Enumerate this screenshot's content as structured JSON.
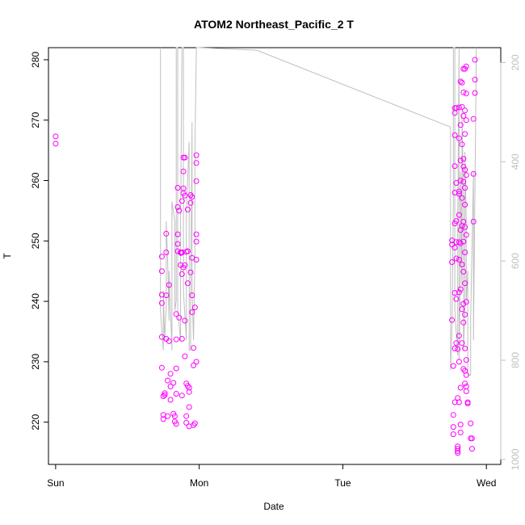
{
  "chart_data": {
    "type": "scatter",
    "title": "ATOM2 Northeast_Pacific_2 T",
    "xlabel": "Date",
    "ylabel": "T",
    "x_ticks": [
      {
        "label": "Sun",
        "value": 0
      },
      {
        "label": "Mon",
        "value": 1
      },
      {
        "label": "Tue",
        "value": 2
      },
      {
        "label": "Wed",
        "value": 3
      }
    ],
    "xlim": [
      -0.05,
      3.1
    ],
    "y_ticks": [
      220,
      230,
      240,
      250,
      260,
      270,
      280
    ],
    "ylim": [
      213,
      282
    ],
    "y2_ticks": [
      200,
      400,
      600,
      800,
      1000
    ],
    "y2lim": [
      1010,
      170
    ],
    "grid": false,
    "point_color": "#ff00ff",
    "line_color": "#bfbfbf",
    "series": [
      {
        "type": "scatter",
        "points": [
          [
            0.0,
            267.3
          ],
          [
            0.0,
            266.1
          ],
          [
            0.74,
            247.4
          ],
          [
            0.74,
            245.0
          ],
          [
            0.74,
            241.1
          ],
          [
            0.74,
            239.7
          ],
          [
            0.74,
            234.1
          ],
          [
            0.74,
            229.0
          ],
          [
            0.75,
            224.3
          ],
          [
            0.75,
            221.2
          ],
          [
            0.75,
            220.5
          ],
          [
            0.76,
            224.8
          ],
          [
            0.76,
            224.5
          ],
          [
            0.77,
            251.2
          ],
          [
            0.77,
            248.1
          ],
          [
            0.77,
            241.0
          ],
          [
            0.77,
            233.8
          ],
          [
            0.78,
            226.9
          ],
          [
            0.78,
            221.0
          ],
          [
            0.79,
            242.7
          ],
          [
            0.79,
            233.4
          ],
          [
            0.8,
            228.0
          ],
          [
            0.8,
            225.9
          ],
          [
            0.8,
            223.7
          ],
          [
            0.82,
            226.5
          ],
          [
            0.82,
            221.4
          ],
          [
            0.83,
            221.0
          ],
          [
            0.83,
            220.1
          ],
          [
            0.84,
            237.9
          ],
          [
            0.84,
            233.7
          ],
          [
            0.84,
            228.9
          ],
          [
            0.84,
            224.7
          ],
          [
            0.84,
            219.7
          ],
          [
            0.85,
            258.8
          ],
          [
            0.85,
            255.6
          ],
          [
            0.85,
            251.1
          ],
          [
            0.85,
            249.5
          ],
          [
            0.85,
            248.3
          ],
          [
            0.86,
            255.0
          ],
          [
            0.86,
            237.3
          ],
          [
            0.87,
            248.1
          ],
          [
            0.87,
            246.0
          ],
          [
            0.88,
            256.6
          ],
          [
            0.88,
            248.1
          ],
          [
            0.88,
            244.5
          ],
          [
            0.88,
            233.8
          ],
          [
            0.88,
            224.4
          ],
          [
            0.89,
            263.8
          ],
          [
            0.89,
            261.5
          ],
          [
            0.89,
            258.7
          ],
          [
            0.89,
            257.9
          ],
          [
            0.89,
            245.6
          ],
          [
            0.9,
            263.8
          ],
          [
            0.9,
            257.5
          ],
          [
            0.9,
            246.0
          ],
          [
            0.9,
            236.8
          ],
          [
            0.9,
            230.9
          ],
          [
            0.91,
            226.4
          ],
          [
            0.91,
            221.0
          ],
          [
            0.91,
            219.9
          ],
          [
            0.91,
            248.2
          ],
          [
            0.92,
            255.2
          ],
          [
            0.92,
            248.3
          ],
          [
            0.92,
            243.0
          ],
          [
            0.92,
            226.0
          ],
          [
            0.93,
            225.7
          ],
          [
            0.93,
            225.0
          ],
          [
            0.93,
            222.5
          ],
          [
            0.93,
            219.3
          ],
          [
            0.94,
            257.6
          ],
          [
            0.94,
            256.3
          ],
          [
            0.94,
            244.8
          ],
          [
            0.95,
            257.3
          ],
          [
            0.95,
            247.2
          ],
          [
            0.95,
            241.0
          ],
          [
            0.95,
            238.2
          ],
          [
            0.96,
            232.3
          ],
          [
            0.96,
            229.4
          ],
          [
            0.96,
            219.5
          ],
          [
            0.97,
            219.8
          ],
          [
            0.97,
            239.0
          ],
          [
            0.98,
            264.2
          ],
          [
            0.98,
            262.9
          ],
          [
            0.98,
            259.9
          ],
          [
            0.98,
            251.1
          ],
          [
            0.98,
            249.9
          ],
          [
            0.98,
            246.9
          ],
          [
            0.98,
            230.0
          ],
          [
            2.76,
            250.1
          ],
          [
            2.76,
            249.4
          ],
          [
            2.76,
            246.5
          ],
          [
            2.76,
            236.9
          ],
          [
            2.77,
            229.3
          ],
          [
            2.77,
            221.2
          ],
          [
            2.77,
            218.0
          ],
          [
            2.77,
            219.2
          ],
          [
            2.78,
            272.0
          ],
          [
            2.78,
            271.2
          ],
          [
            2.78,
            267.5
          ],
          [
            2.78,
            262.4
          ],
          [
            2.78,
            258.0
          ],
          [
            2.78,
            252.9
          ],
          [
            2.78,
            248.9
          ],
          [
            2.78,
            241.4
          ],
          [
            2.78,
            232.2
          ],
          [
            2.78,
            223.3
          ],
          [
            2.79,
            272.0
          ],
          [
            2.79,
            259.6
          ],
          [
            2.79,
            253.3
          ],
          [
            2.79,
            249.8
          ],
          [
            2.79,
            247.1
          ],
          [
            2.79,
            240.4
          ],
          [
            2.79,
            233.1
          ],
          [
            2.8,
            232.1
          ],
          [
            2.8,
            224.0
          ],
          [
            2.8,
            216.0
          ],
          [
            2.8,
            215.6
          ],
          [
            2.8,
            215.2
          ],
          [
            2.8,
            214.9
          ],
          [
            2.81,
            272.1
          ],
          [
            2.81,
            267.0
          ],
          [
            2.81,
            258.2
          ],
          [
            2.81,
            257.8
          ],
          [
            2.81,
            254.3
          ],
          [
            2.81,
            249.8
          ],
          [
            2.81,
            246.9
          ],
          [
            2.81,
            241.5
          ],
          [
            2.81,
            234.3
          ],
          [
            2.81,
            230.0
          ],
          [
            2.81,
            223.3
          ],
          [
            2.82,
            276.4
          ],
          [
            2.82,
            269.2
          ],
          [
            2.82,
            263.3
          ],
          [
            2.82,
            260.0
          ],
          [
            2.82,
            251.8
          ],
          [
            2.82,
            249.6
          ],
          [
            2.82,
            242.0
          ],
          [
            2.82,
            225.7
          ],
          [
            2.82,
            219.6
          ],
          [
            2.82,
            218.3
          ],
          [
            2.83,
            276.2
          ],
          [
            2.83,
            272.2
          ],
          [
            2.83,
            266.0
          ],
          [
            2.83,
            257.1
          ],
          [
            2.83,
            252.5
          ],
          [
            2.83,
            246.1
          ],
          [
            2.83,
            238.7
          ],
          [
            2.83,
            233.1
          ],
          [
            2.84,
            278.5
          ],
          [
            2.84,
            274.6
          ],
          [
            2.84,
            270.7
          ],
          [
            2.84,
            263.6
          ],
          [
            2.84,
            262.3
          ],
          [
            2.84,
            259.8
          ],
          [
            2.84,
            253.2
          ],
          [
            2.84,
            249.9
          ],
          [
            2.84,
            244.9
          ],
          [
            2.84,
            239.6
          ],
          [
            2.84,
            236.5
          ],
          [
            2.84,
            228.8
          ],
          [
            2.85,
            278.5
          ],
          [
            2.85,
            271.6
          ],
          [
            2.85,
            267.7
          ],
          [
            2.85,
            261.8
          ],
          [
            2.85,
            258.8
          ],
          [
            2.85,
            256.0
          ],
          [
            2.85,
            252.3
          ],
          [
            2.85,
            248.1
          ],
          [
            2.85,
            243.0
          ],
          [
            2.85,
            237.8
          ],
          [
            2.85,
            232.2
          ],
          [
            2.85,
            228.5
          ],
          [
            2.85,
            226.4
          ],
          [
            2.86,
            278.9
          ],
          [
            2.86,
            274.4
          ],
          [
            2.86,
            270.0
          ],
          [
            2.86,
            260.9
          ],
          [
            2.86,
            251.0
          ],
          [
            2.86,
            239.9
          ],
          [
            2.86,
            230.3
          ],
          [
            2.86,
            227.8
          ],
          [
            2.86,
            225.9
          ],
          [
            2.86,
            225.1
          ],
          [
            2.87,
            223.3
          ],
          [
            2.87,
            223.1
          ],
          [
            2.89,
            219.8
          ],
          [
            2.89,
            217.3
          ],
          [
            2.9,
            217.3
          ],
          [
            2.9,
            215.6
          ],
          [
            2.91,
            253.2
          ],
          [
            2.91,
            261.1
          ],
          [
            2.91,
            270.2
          ],
          [
            2.92,
            274.5
          ],
          [
            2.92,
            276.7
          ],
          [
            2.92,
            280.0
          ],
          [
            0.873,
            248.0
          ],
          [
            0.88,
            248.1
          ]
        ]
      },
      {
        "type": "line",
        "axis": "right",
        "points": [
          [
            0.73,
            170
          ],
          [
            0.73,
            700
          ],
          [
            0.75,
            780
          ],
          [
            0.75,
            660
          ],
          [
            0.76,
            760
          ],
          [
            0.77,
            690
          ],
          [
            0.77,
            520
          ],
          [
            0.78,
            600
          ],
          [
            0.79,
            720
          ],
          [
            0.79,
            620
          ],
          [
            0.81,
            780
          ],
          [
            0.81,
            480
          ],
          [
            0.83,
            520
          ],
          [
            0.83,
            700
          ],
          [
            0.84,
            680
          ],
          [
            0.84,
            170
          ],
          [
            0.85,
            170
          ],
          [
            0.85,
            700
          ],
          [
            0.87,
            760
          ],
          [
            0.87,
            520
          ],
          [
            0.88,
            170
          ],
          [
            0.89,
            170
          ],
          [
            0.89,
            660
          ],
          [
            0.91,
            760
          ],
          [
            0.91,
            500
          ],
          [
            0.93,
            360
          ],
          [
            0.93,
            780
          ],
          [
            0.94,
            780
          ],
          [
            0.94,
            680
          ],
          [
            0.95,
            320
          ],
          [
            0.95,
            660
          ],
          [
            0.96,
            760
          ],
          [
            0.97,
            600
          ],
          [
            0.97,
            380
          ],
          [
            0.98,
            170
          ],
          [
            1.0,
            170
          ],
          [
            1.4,
            175
          ],
          [
            2.75,
            330
          ],
          [
            2.75,
            820
          ],
          [
            2.76,
            740
          ],
          [
            2.77,
            480
          ],
          [
            2.77,
            170
          ],
          [
            2.78,
            170
          ],
          [
            2.78,
            700
          ],
          [
            2.8,
            790
          ],
          [
            2.8,
            520
          ],
          [
            2.81,
            170
          ],
          [
            2.81,
            800
          ],
          [
            2.82,
            620
          ],
          [
            2.82,
            420
          ],
          [
            2.83,
            650
          ],
          [
            2.83,
            300
          ],
          [
            2.84,
            480
          ],
          [
            2.84,
            780
          ],
          [
            2.85,
            700
          ],
          [
            2.85,
            380
          ],
          [
            2.86,
            520
          ],
          [
            2.86,
            680
          ],
          [
            2.87,
            620
          ],
          [
            2.87,
            830
          ],
          [
            2.89,
            830
          ],
          [
            2.89,
            720
          ],
          [
            2.91,
            420
          ],
          [
            2.91,
            760
          ],
          [
            2.93,
            170
          ]
        ]
      }
    ]
  }
}
